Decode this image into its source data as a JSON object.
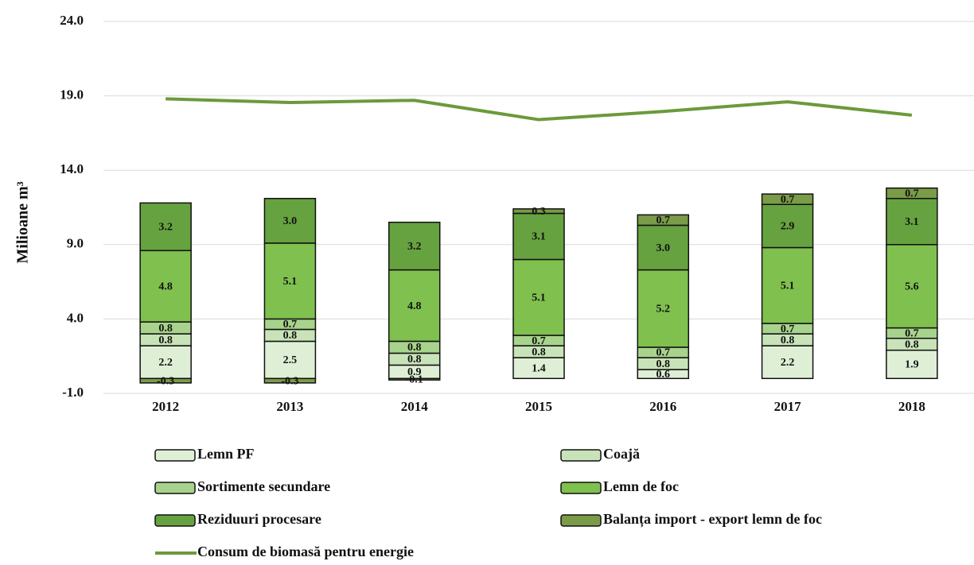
{
  "chart_data": {
    "type": "bar",
    "stacked": true,
    "y_label": "Milioane m³",
    "categories": [
      "2012",
      "2013",
      "2014",
      "2015",
      "2016",
      "2017",
      "2018"
    ],
    "ylim": [
      -1,
      24
    ],
    "yticks": [
      {
        "value": -1,
        "label": "-1.0"
      },
      {
        "value": 4,
        "label": "4.0"
      },
      {
        "value": 9,
        "label": "9.0"
      },
      {
        "value": 14,
        "label": "14.0"
      },
      {
        "value": 19,
        "label": "19.0"
      },
      {
        "value": 24,
        "label": "24.0"
      }
    ],
    "grid": true,
    "series": [
      {
        "name": "Lemn PF",
        "color": "#deefd6",
        "values": [
          2.2,
          2.5,
          0.9,
          1.4,
          0.6,
          2.2,
          1.9
        ],
        "value_labels": [
          "2.2",
          "2.5",
          "0.9",
          "1.4",
          "0.6",
          "2.2",
          "1.9"
        ]
      },
      {
        "name": "Coajă",
        "color": "#c8e3b8",
        "values": [
          0.8,
          0.8,
          0.8,
          0.8,
          0.8,
          0.8,
          0.8
        ],
        "value_labels": [
          "0.8",
          "0.8",
          "0.8",
          "0.8",
          "0.8",
          "0.8",
          "0.8"
        ]
      },
      {
        "name": "Sortimente secundare",
        "color": "#a8d38c",
        "values": [
          0.8,
          0.7,
          0.8,
          0.7,
          0.7,
          0.7,
          0.7
        ],
        "value_labels": [
          "0.8",
          "0.7",
          "0.8",
          "0.7",
          "0.7",
          "0.7",
          "0.7"
        ]
      },
      {
        "name": "Lemn de foc",
        "color": "#7fc04e",
        "values": [
          4.8,
          5.1,
          4.8,
          5.1,
          5.2,
          5.1,
          5.6
        ],
        "value_labels": [
          "4.8",
          "5.1",
          "4.8",
          "5.1",
          "5.2",
          "5.1",
          "5.6"
        ]
      },
      {
        "name": "Reziduuri procesare",
        "color": "#66a23f",
        "values": [
          3.2,
          3.0,
          3.2,
          3.1,
          3.0,
          2.9,
          3.1
        ],
        "value_labels": [
          "3.2",
          "3.0",
          "3.2",
          "3.1",
          "3.0",
          "2.9",
          "3.1"
        ]
      },
      {
        "name": "Balanța import - export lemn de foc",
        "color": "#7a9b48",
        "values": [
          -0.3,
          -0.3,
          -0.1,
          0.3,
          0.7,
          0.7,
          0.7
        ],
        "value_labels": [
          "-0.3",
          "-0.3",
          "-0.1",
          "0.3",
          "0.7",
          "0.7",
          "0.7"
        ]
      },
      {
        "name": "Consum de biomasă pentru energie",
        "type": "line",
        "color": "#6b9a3b",
        "values": [
          18.8,
          18.55,
          18.7,
          17.4,
          17.95,
          18.6,
          17.7
        ]
      }
    ]
  }
}
